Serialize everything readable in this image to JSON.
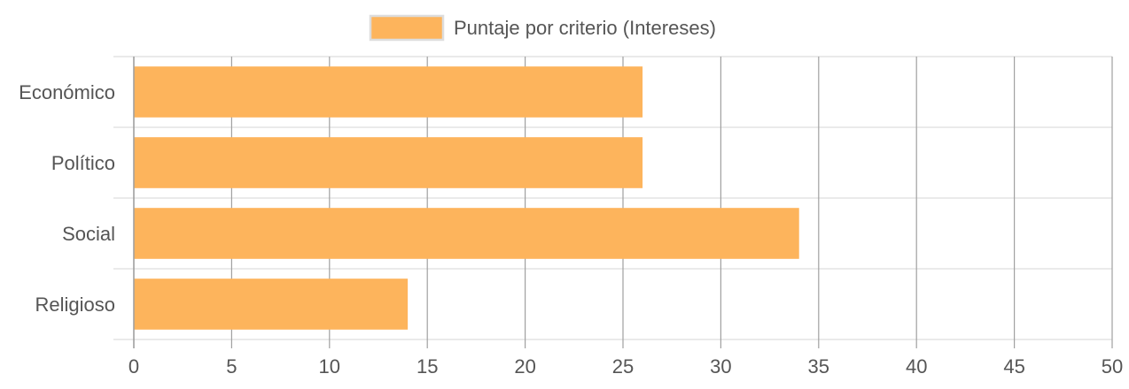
{
  "colors": {
    "bar_fill": "#FDB45C",
    "legend_border": "#dddddd",
    "grid_vertical": "#a0a0a0",
    "grid_horizontal": "#dedede",
    "axis": "#a0a0a0",
    "text": "#555555"
  },
  "chart_data": {
    "type": "bar",
    "orientation": "horizontal",
    "categories": [
      "Económico",
      "Político",
      "Social",
      "Religioso"
    ],
    "series": [
      {
        "name": "Puntaje por criterio (Intereses)",
        "values": [
          26,
          26,
          34,
          14
        ]
      }
    ],
    "xlim": [
      0,
      50
    ],
    "x_ticks": [
      0,
      5,
      10,
      15,
      20,
      25,
      30,
      35,
      40,
      45,
      50
    ],
    "grid": true,
    "legend_position": "top-center"
  }
}
